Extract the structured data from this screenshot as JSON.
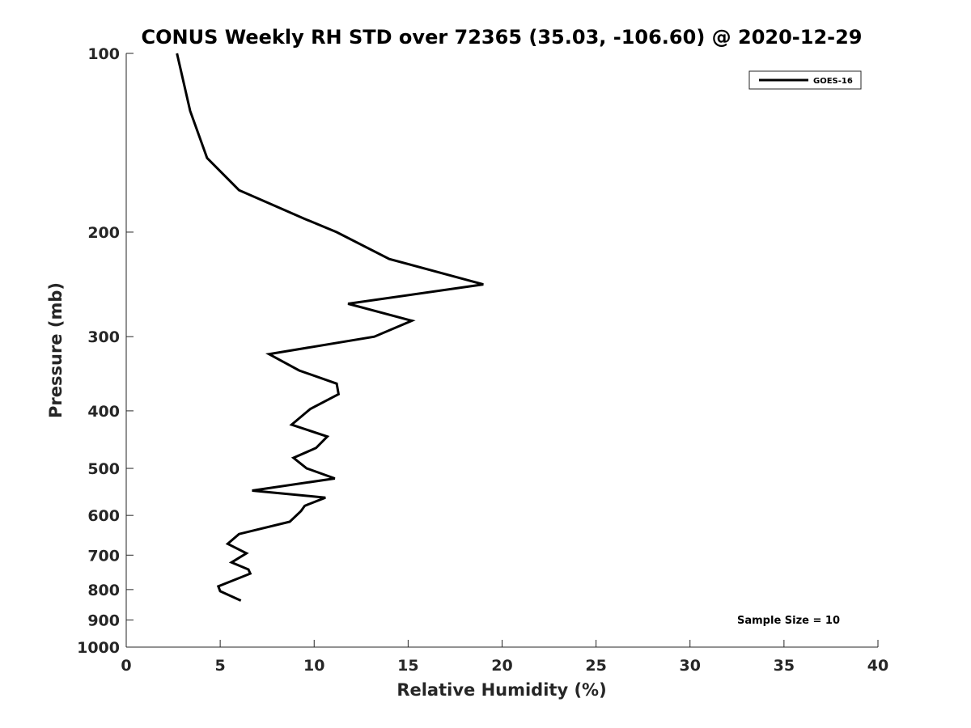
{
  "chart_data": {
    "type": "line",
    "title": "CONUS Weekly RH STD over 72365 (35.03, -106.60) @ 2020-12-29",
    "xlabel": "Relative Humidity (%)",
    "ylabel": "Pressure (mb)",
    "xlim": [
      0,
      40
    ],
    "ylim": [
      100,
      1000
    ],
    "y_scale": "log",
    "y_reversed": true,
    "grid": false,
    "x_ticks": [
      "0",
      "5",
      "10",
      "15",
      "20",
      "25",
      "30",
      "35",
      "40"
    ],
    "y_ticks": [
      "100",
      "200",
      "300",
      "400",
      "500",
      "600",
      "700",
      "800",
      "900",
      "1000"
    ],
    "legend": {
      "placement": "top-right",
      "entries": [
        "GOES-16"
      ]
    },
    "annotation": "Sample Size = 10",
    "series": [
      {
        "name": "GOES-16",
        "color": "#000000",
        "x": [
          2.7,
          3.4,
          4.3,
          6.0,
          9.5,
          11.2,
          14.0,
          19.0,
          11.8,
          15.2,
          13.2,
          7.6,
          9.2,
          11.2,
          11.3,
          9.8,
          8.8,
          10.7,
          10.1,
          8.9,
          9.6,
          11.1,
          6.7,
          10.6,
          9.5,
          9.3,
          8.7,
          6.0,
          5.4,
          6.4,
          5.6,
          6.5,
          6.6,
          4.9,
          5.0,
          6.1
        ],
        "y": [
          100,
          125,
          150,
          170,
          190,
          200,
          222,
          245,
          264,
          282,
          300,
          321,
          342,
          360,
          375,
          397,
          422,
          442,
          462,
          480,
          500,
          520,
          545,
          560,
          578,
          590,
          615,
          645,
          670,
          695,
          720,
          740,
          752,
          790,
          805,
          835
        ]
      }
    ]
  }
}
